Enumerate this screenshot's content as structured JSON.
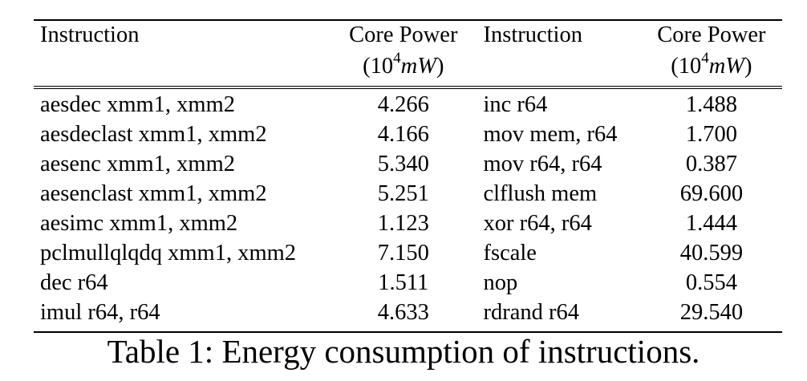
{
  "table": {
    "headers": {
      "instruction_left": "Instruction",
      "power_left_line1": "Core Power",
      "power_left_unit_open": "(10",
      "power_left_unit_exp": "4",
      "power_left_unit_var": "mW",
      "power_left_unit_close": ")",
      "instruction_right": "Instruction",
      "power_right_line1": "Core Power",
      "power_right_unit_open": "(10",
      "power_right_unit_exp": "4",
      "power_right_unit_var": "mW",
      "power_right_unit_close": ")"
    },
    "rows": [
      {
        "instr_left": "aesdec xmm1, xmm2",
        "power_left": "4.266",
        "instr_right": "inc r64",
        "power_right": "1.488"
      },
      {
        "instr_left": "aesdeclast xmm1, xmm2",
        "power_left": "4.166",
        "instr_right": "mov mem, r64",
        "power_right": "1.700"
      },
      {
        "instr_left": "aesenc xmm1, xmm2",
        "power_left": "5.340",
        "instr_right": "mov r64, r64",
        "power_right": "0.387"
      },
      {
        "instr_left": "aesenclast xmm1, xmm2",
        "power_left": "5.251",
        "instr_right": "clflush mem",
        "power_right": "69.600"
      },
      {
        "instr_left": "aesimc xmm1, xmm2",
        "power_left": "1.123",
        "instr_right": "xor r64, r64",
        "power_right": "1.444"
      },
      {
        "instr_left": "pclmullqlqdq xmm1, xmm2",
        "power_left": "7.150",
        "instr_right": "fscale",
        "power_right": "40.599"
      },
      {
        "instr_left": "dec r64",
        "power_left": "1.511",
        "instr_right": "nop",
        "power_right": "0.554"
      },
      {
        "instr_left": "imul r64, r64",
        "power_left": "4.633",
        "instr_right": "rdrand r64",
        "power_right": "29.540"
      }
    ]
  },
  "caption": "Table 1: Energy consumption of instructions."
}
